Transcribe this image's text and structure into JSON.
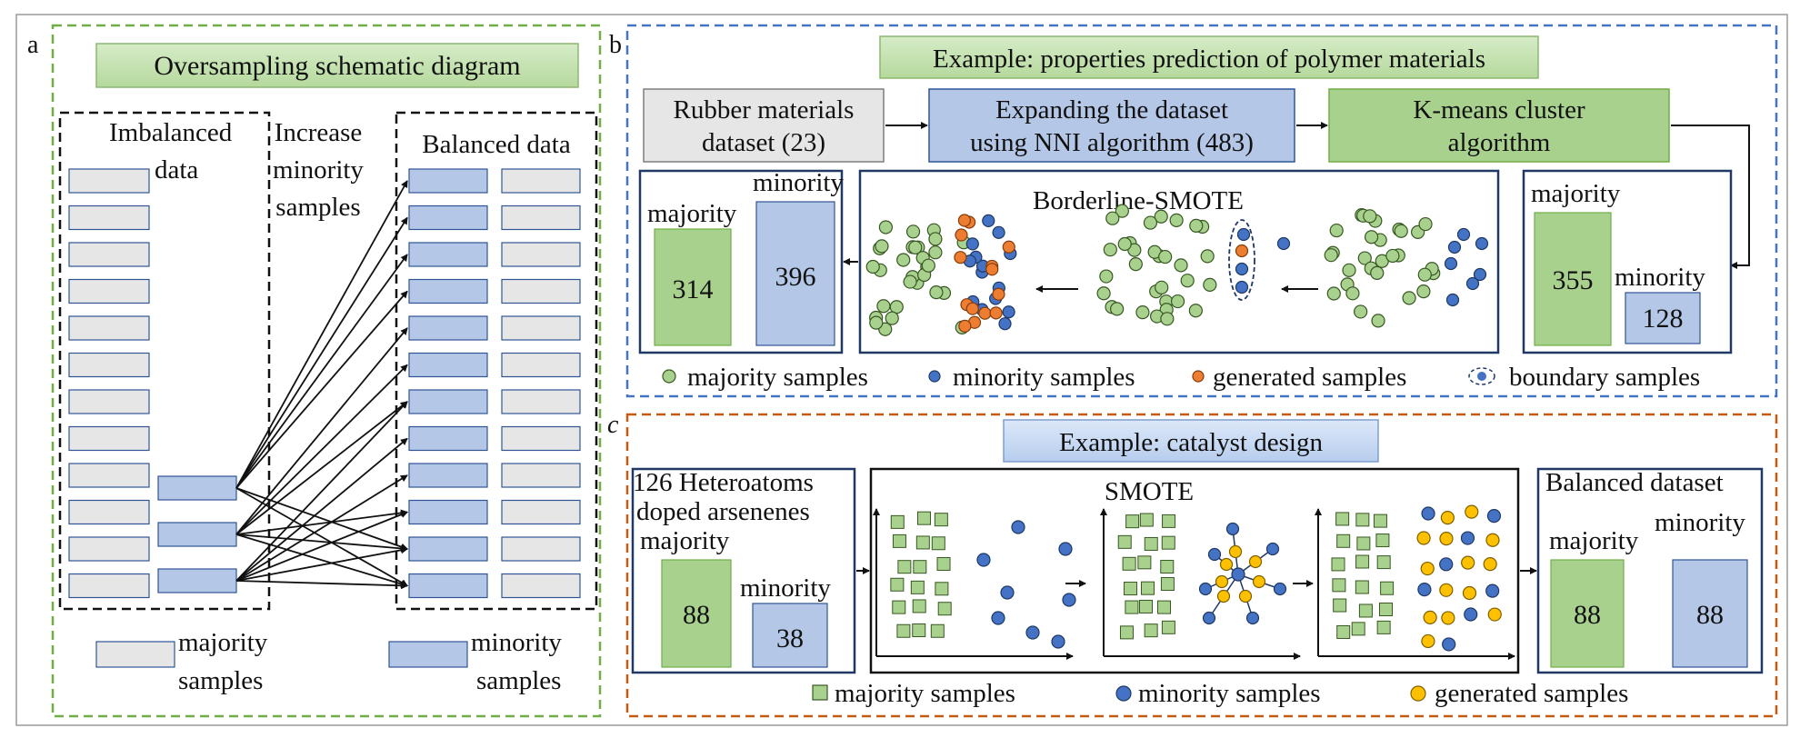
{
  "panel_a": {
    "letter": "a",
    "title": "Oversampling schematic diagram",
    "imbalanced_label": [
      "Imbalanced",
      "data"
    ],
    "increase_label": [
      "Increase",
      "minority",
      "samples"
    ],
    "balanced_label": "Balanced data",
    "legend_majority": [
      "majority",
      "samples"
    ],
    "legend_minority": [
      "minority",
      "samples"
    ],
    "imbalanced_majority_count": 12,
    "imbalanced_minority_count": 3,
    "balanced_rows": 12
  },
  "panel_b": {
    "letter": "b",
    "title": "Example: properties prediction of polymer materials",
    "step1": [
      "Rubber materials",
      "dataset (23)"
    ],
    "step2": [
      "Expanding the dataset",
      "using NNI algorithm (483)"
    ],
    "step3": [
      "K-means cluster",
      "algorithm"
    ],
    "before": {
      "majority_label": "majority",
      "minority_label": "minority",
      "majority_value": "355",
      "minority_value": "128"
    },
    "after": {
      "majority_label": "majority",
      "minority_label": "minority",
      "majority_value": "314",
      "minority_value": "396"
    },
    "process_title": "Borderline-SMOTE",
    "legend": [
      "majority samples",
      "minority samples",
      "generated samples",
      "boundary samples"
    ]
  },
  "panel_c": {
    "letter": "c",
    "title": "Example: catalyst design",
    "input_label": [
      "126 Heteroatoms",
      "doped arsenenes"
    ],
    "input": {
      "majority_label": "majority",
      "minority_label": "minority",
      "majority_value": "88",
      "minority_value": "38"
    },
    "process_title": "SMOTE",
    "output_title": "Balanced dataset",
    "output": {
      "majority_label": "majority",
      "minority_label": "minority",
      "majority_value": "88",
      "minority_value": "88"
    },
    "legend": [
      "majority samples",
      "minority samples",
      "generated samples"
    ]
  },
  "colors": {
    "green_fill": "#a9d18e",
    "green_title": "#c5e0b4",
    "blue_fill": "#b4c7e7",
    "blue_title": "#c9daf3",
    "gray_fill": "#e7e6e6",
    "majority_dot": "#a9d18e",
    "minority_dot": "#4472c4",
    "generated_dot_b": "#ed7d31",
    "generated_dot_c": "#ffc000",
    "frame_a": "#70ad47",
    "frame_b": "#4472c4",
    "frame_c": "#c55a11",
    "dark_frame": "#1f3864"
  }
}
